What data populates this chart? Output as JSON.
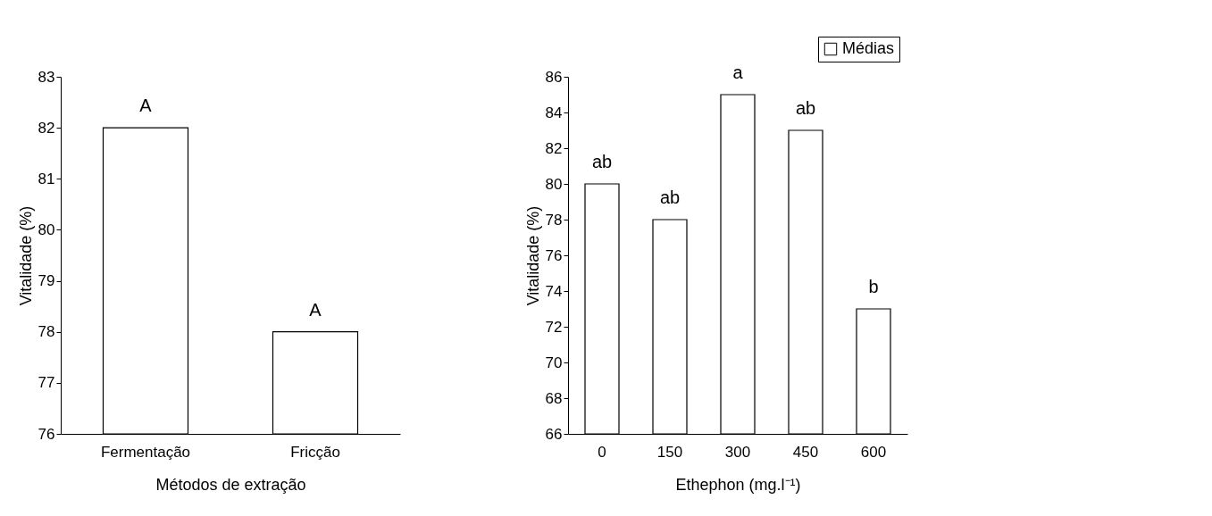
{
  "chart_data": [
    {
      "type": "bar",
      "categories": [
        "Fermentação",
        "Fricção"
      ],
      "values": [
        82,
        78
      ],
      "color": "#ffffff",
      "xlabel": "Métodos de extração",
      "ylabel": "Vitalidade (%)",
      "ylim": [
        76,
        83
      ],
      "yticks": [
        76,
        77,
        78,
        79,
        80,
        81,
        82,
        83
      ],
      "grid": false,
      "annotations": [
        {
          "text": "A",
          "x": "Fermentação",
          "y": 82
        },
        {
          "text": "A",
          "x": "Fricção",
          "y": 78
        }
      ]
    },
    {
      "type": "bar",
      "categories": [
        "0",
        "150",
        "300",
        "450",
        "600"
      ],
      "series": [
        {
          "name": "Médias",
          "color": "#ffffff",
          "values": [
            80,
            78,
            85,
            83,
            73
          ]
        }
      ],
      "xlabel": "Ethephon (mg.l⁻¹)",
      "ylabel": "Vitalidade (%)",
      "ylim": [
        66,
        86
      ],
      "yticks": [
        66,
        68,
        70,
        72,
        74,
        76,
        78,
        80,
        82,
        84,
        86
      ],
      "grid": false,
      "legend": "top right",
      "annotations": [
        {
          "text": "ab",
          "x": "0",
          "y": 80
        },
        {
          "text": "ab",
          "x": "150",
          "y": 78
        },
        {
          "text": "a",
          "x": "300",
          "y": 85
        },
        {
          "text": "ab",
          "x": "450",
          "y": 83
        },
        {
          "text": "b",
          "x": "600",
          "y": 73
        }
      ]
    }
  ]
}
